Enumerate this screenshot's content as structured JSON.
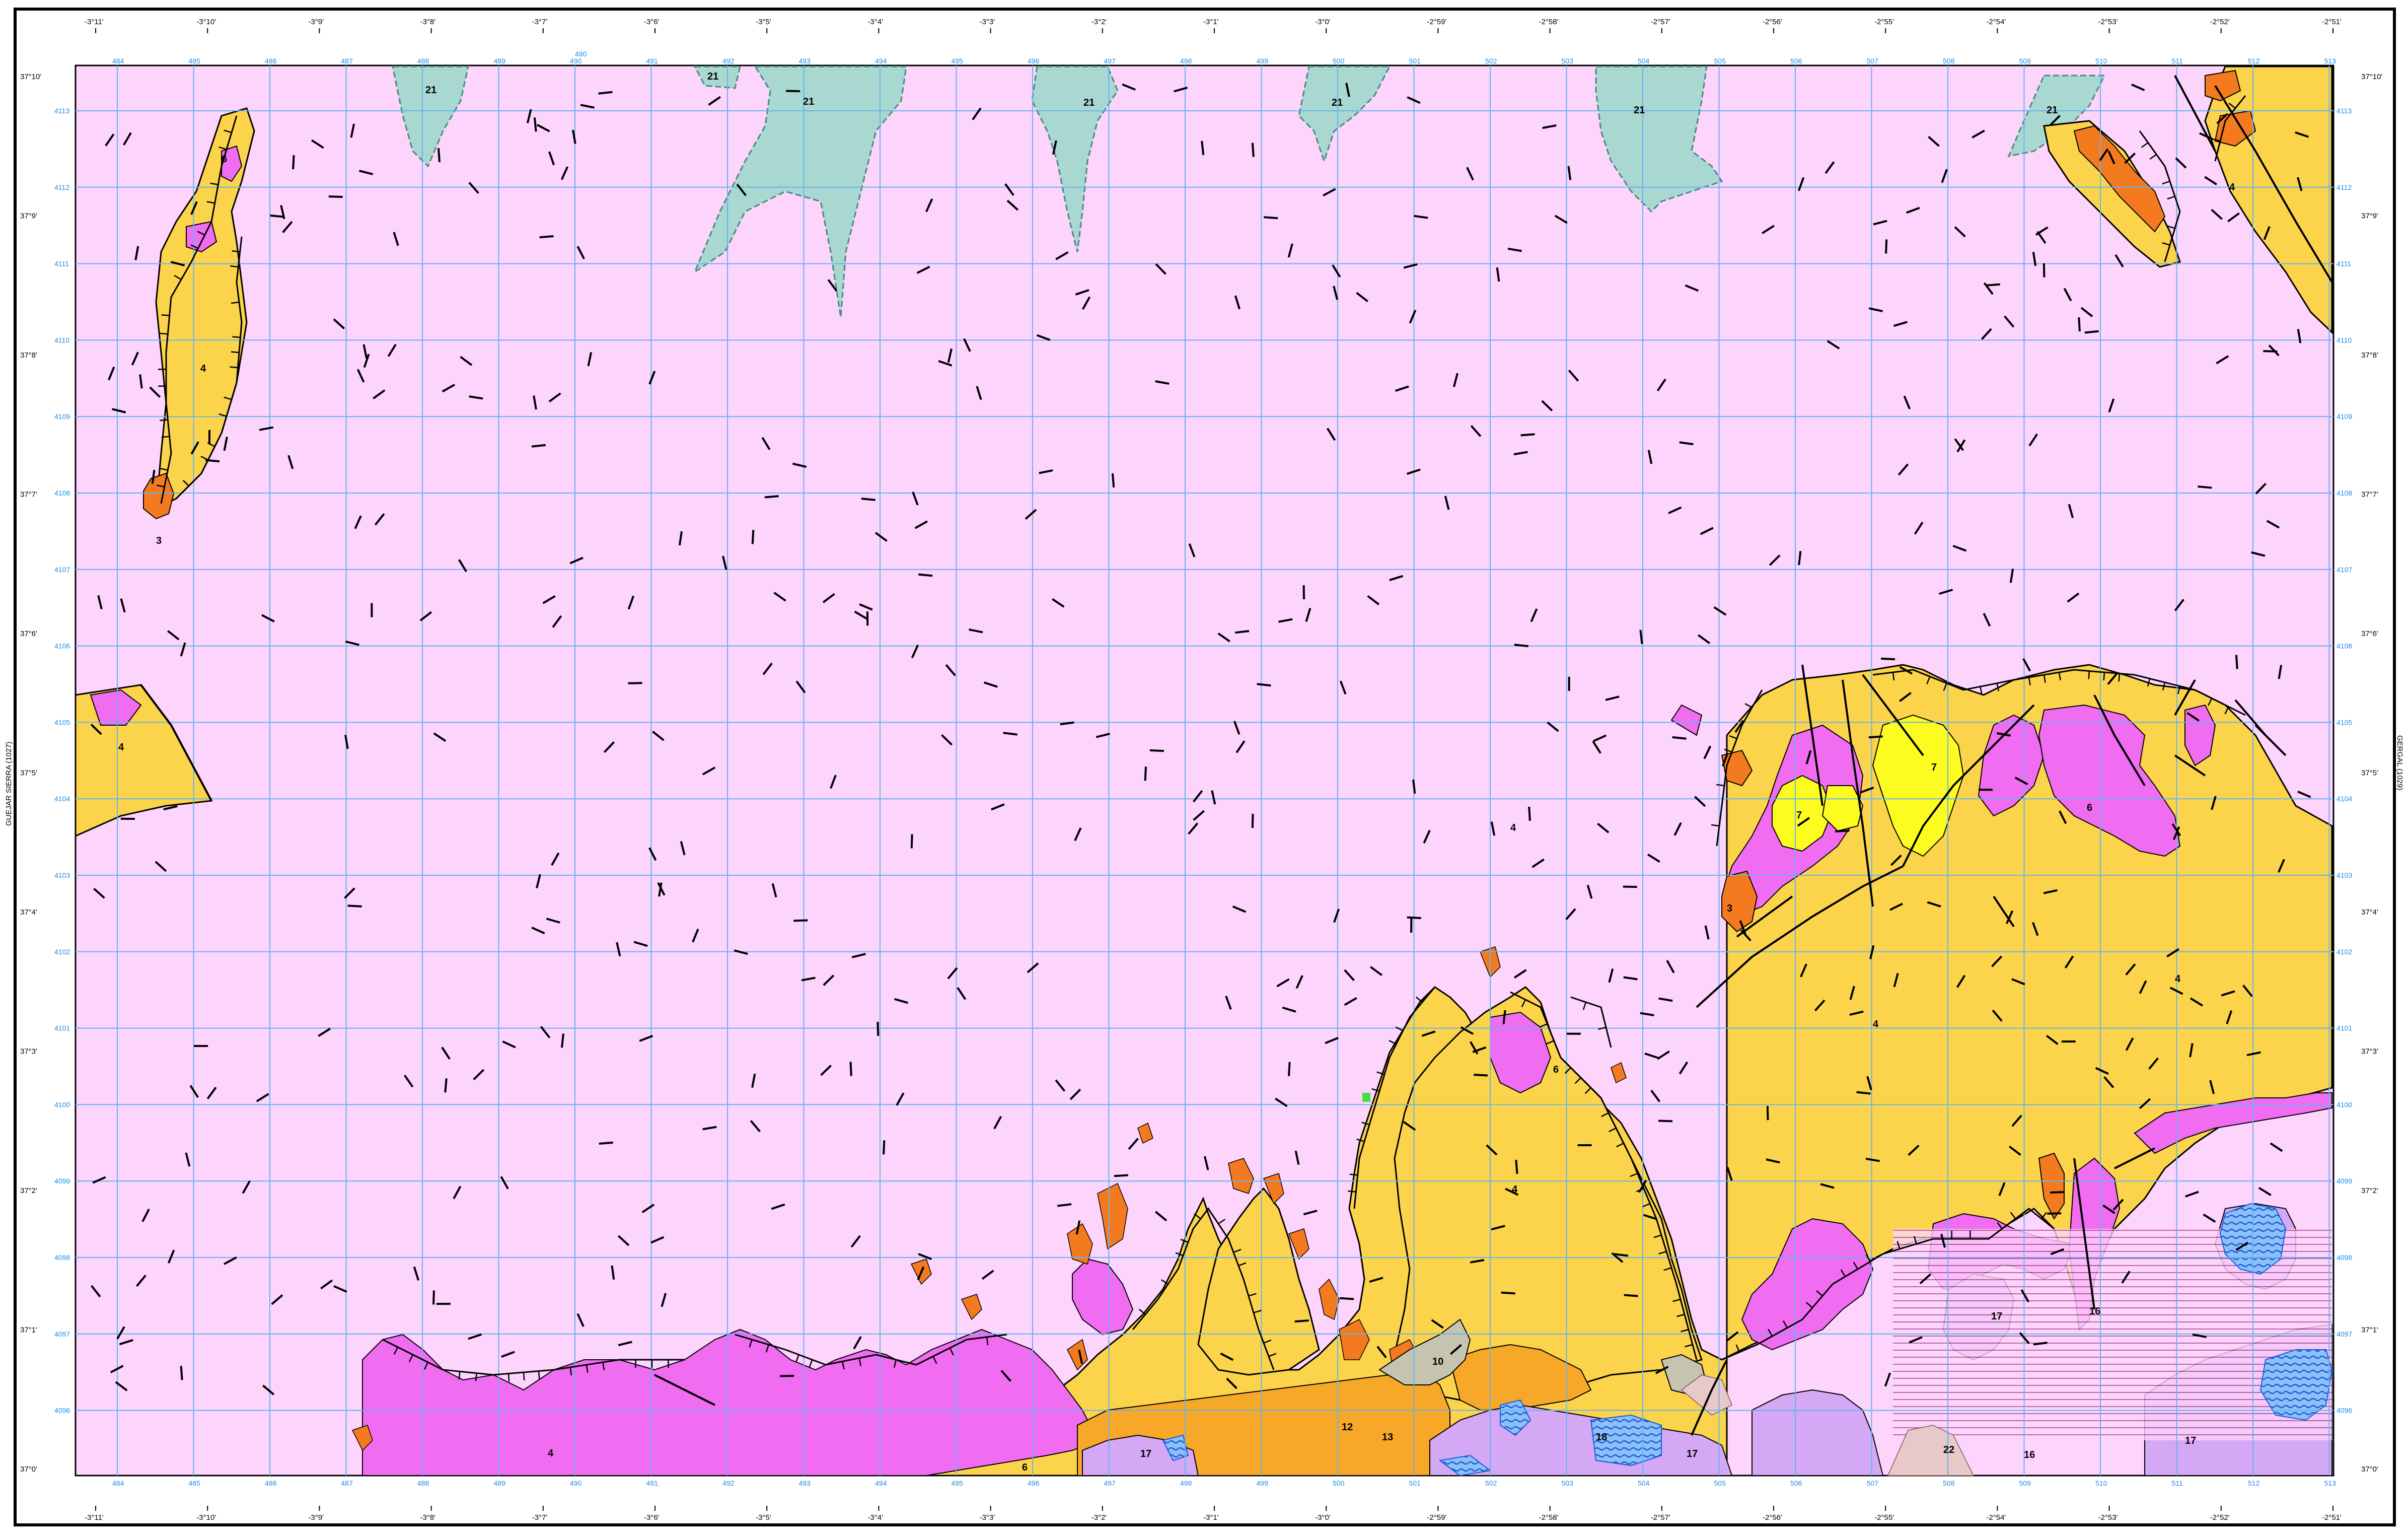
{
  "map": {
    "side_label_left": "GUEJAR SIERRA (1027)",
    "side_label_right": "GERGAL (1029)",
    "top_lon_labels": [
      "-3°11'",
      "-3°10'",
      "-3°9'",
      "-3°8'",
      "-3°7'",
      "-3°6'",
      "-3°5'",
      "-3°4'",
      "-3°3'",
      "-3°2'",
      "-3°1'",
      "-3°0'",
      "-2°59'",
      "-2°58'",
      "-2°57'",
      "-2°56'",
      "-2°55'",
      "-2°54'",
      "-2°53'",
      "-2°52'",
      "-2°51'"
    ],
    "utm_x_labels": [
      "484",
      "485",
      "486",
      "487",
      "488",
      "489",
      "490",
      "491",
      "492",
      "493",
      "494",
      "495",
      "496",
      "497",
      "498",
      "499",
      "500",
      "501",
      "502",
      "503",
      "504",
      "505",
      "506",
      "507",
      "508",
      "509",
      "510",
      "511",
      "512",
      "513"
    ],
    "utm_y_labels": [
      "4113",
      "4112",
      "4111",
      "4110",
      "4109",
      "4108",
      "4107",
      "4106",
      "4105",
      "4104",
      "4103",
      "4102",
      "4101",
      "4100",
      "4099",
      "4098",
      "4097",
      "4096"
    ],
    "lat_labels": [
      "37°10'",
      "37°9'",
      "37°8'",
      "37°7'",
      "37°6'",
      "37°5'",
      "37°4'",
      "37°3'",
      "37°2'",
      "37°1'",
      "37°0'"
    ],
    "top_extra_label": "490",
    "unit_labels": {
      "u21a": "21",
      "u21b": "21",
      "u21c": "21",
      "u21d": "21",
      "u21e": "21",
      "u21f": "21",
      "u21g": "21",
      "u4a": "4",
      "u4b": "4",
      "u4c": "4",
      "u4d": "4",
      "u4e": "4",
      "u4f": "4",
      "u4g": "4",
      "u4h": "4",
      "u6a": "6",
      "u6b": "6",
      "u6c": "6",
      "u6d": "6",
      "u7a": "7",
      "u7b": "7",
      "u3a": "3",
      "u3b": "3",
      "u10": "10",
      "u12": "12",
      "u13": "13",
      "u16a": "16",
      "u16b": "16",
      "u17a": "17",
      "u17b": "17",
      "u17c": "17",
      "u17d": "17",
      "u22": "22",
      "u18": "18"
    },
    "colors": {
      "base_pink": "#fcd4fc",
      "yellow_orange": "#fcd44c",
      "magenta": "#f06cf0",
      "orange": "#f47a20",
      "teal": "#a8d8d0",
      "lavender": "#d4a8f4",
      "blue_hatch": "#2a7ae4",
      "bright_yellow": "#fcfc20",
      "amber": "#f8a828",
      "grid_blue": "#64b4f0"
    }
  }
}
